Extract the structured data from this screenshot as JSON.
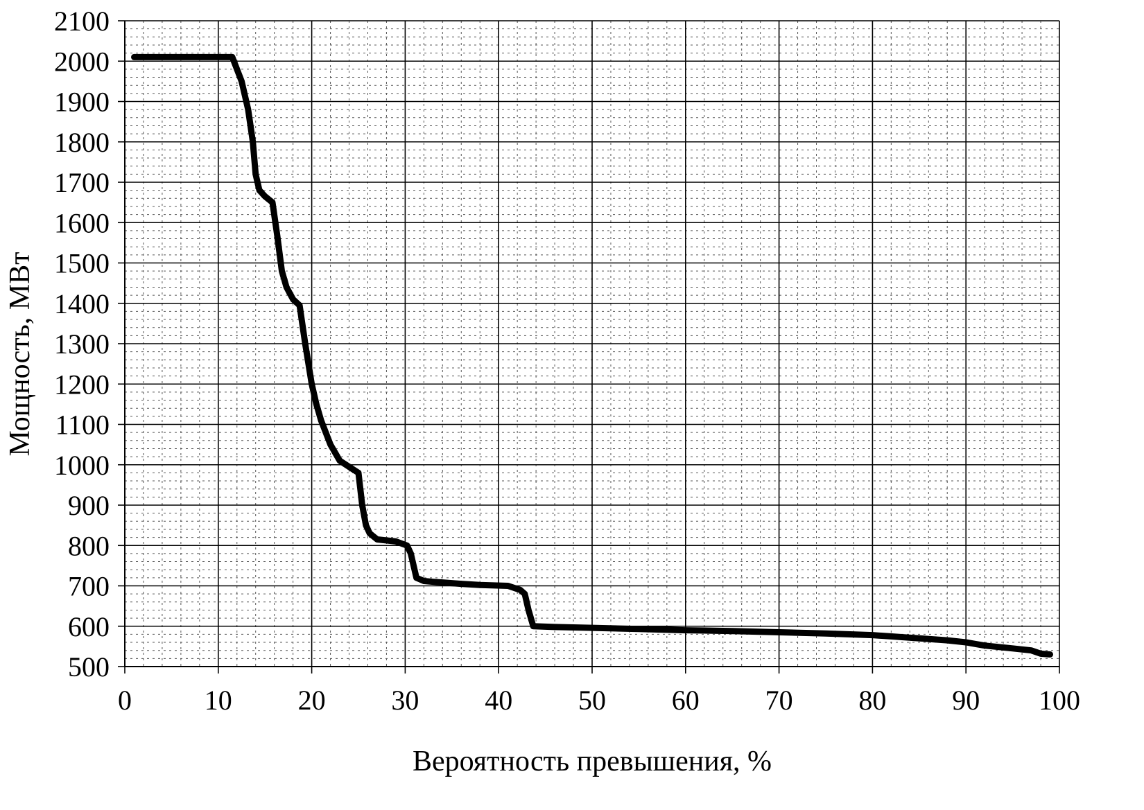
{
  "chart_data": {
    "type": "line",
    "title": "",
    "xlabel": "Вероятность превышения, %",
    "ylabel": "Мощность, МВт",
    "xlim": [
      0,
      100
    ],
    "ylim": [
      500,
      2100
    ],
    "x_ticks": [
      0,
      10,
      20,
      30,
      40,
      50,
      60,
      70,
      80,
      90,
      100
    ],
    "y_ticks": [
      500,
      600,
      700,
      800,
      900,
      1000,
      1100,
      1200,
      1300,
      1400,
      1500,
      1600,
      1700,
      1800,
      1900,
      2000,
      2100
    ],
    "x_tick_labels": [
      "0",
      "10",
      "20",
      "30",
      "40",
      "50",
      "60",
      "70",
      "80",
      "90",
      "100"
    ],
    "y_tick_labels": [
      "500",
      "600",
      "700",
      "800",
      "900",
      "1000",
      "1100",
      "1200",
      "1300",
      "1400",
      "1500",
      "1600",
      "1700",
      "1800",
      "1900",
      "2000",
      "2100"
    ],
    "grid": true,
    "legend": "none",
    "series": [
      {
        "color": "#000000",
        "x": [
          1,
          5,
          11.5,
          12.5,
          13.2,
          13.7,
          14,
          14.4,
          15,
          15.8,
          16.3,
          16.8,
          17.3,
          18,
          18.7,
          19.3,
          20,
          20.5,
          21,
          22,
          23,
          24,
          25,
          25.4,
          25.8,
          26.2,
          27,
          29,
          30.2,
          30.6,
          31.2,
          32,
          33,
          36,
          38,
          41,
          42.3,
          42.8,
          43.2,
          43.7,
          46,
          50,
          55,
          60,
          65,
          70,
          75,
          80,
          85,
          88,
          90,
          92,
          95,
          97,
          98,
          99
        ],
        "y": [
          2010,
          2010,
          2010,
          1950,
          1880,
          1800,
          1720,
          1680,
          1665,
          1650,
          1570,
          1480,
          1440,
          1410,
          1395,
          1300,
          1200,
          1150,
          1110,
          1050,
          1010,
          995,
          980,
          900,
          850,
          830,
          815,
          810,
          800,
          780,
          720,
          712,
          710,
          705,
          702,
          700,
          690,
          680,
          640,
          600,
          598,
          596,
          593,
          590,
          588,
          585,
          582,
          578,
          570,
          565,
          560,
          552,
          545,
          540,
          532,
          530
        ]
      }
    ]
  }
}
